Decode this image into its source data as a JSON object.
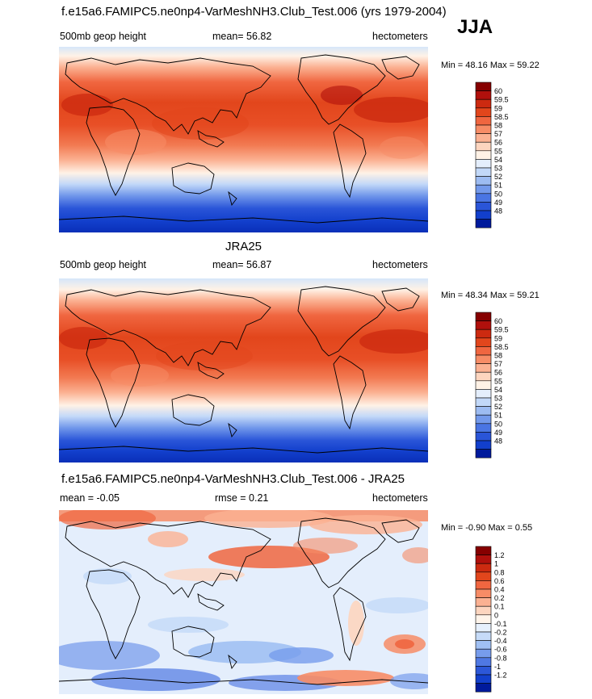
{
  "season": "JJA",
  "panels": [
    {
      "title": "f.e15a6.FAMIPC5.ne0np4-VarMeshNH3.Club_Test.006 (yrs 1979-2004)",
      "left_label": "500mb geop height",
      "center_label": "mean=  56.82",
      "right_label": "hectometers",
      "minmax": "Min =  48.16 Max =  59.22",
      "colorbar": {
        "labels": [
          "60",
          "59.5",
          "59",
          "58.5",
          "58",
          "57",
          "56",
          "55",
          "54",
          "53",
          "52",
          "51",
          "50",
          "49",
          "48"
        ],
        "colors": [
          "#860000",
          "#b0100c",
          "#cc2a10",
          "#e2461c",
          "#f06640",
          "#f78c66",
          "#fbb192",
          "#fdd5bf",
          "#fff2e6",
          "#e4eefc",
          "#c2d8f8",
          "#9dbcf2",
          "#7399eb",
          "#4a75e3",
          "#2a55d8",
          "#123fcc",
          "#001a9c"
        ]
      }
    },
    {
      "title": "JRA25",
      "left_label": "500mb geop height",
      "center_label": "mean=  56.87",
      "right_label": "hectometers",
      "minmax": "Min =  48.34 Max =  59.21",
      "colorbar": {
        "labels": [
          "60",
          "59.5",
          "59",
          "58.5",
          "58",
          "57",
          "56",
          "55",
          "54",
          "53",
          "52",
          "51",
          "50",
          "49",
          "48"
        ],
        "colors": [
          "#860000",
          "#b0100c",
          "#cc2a10",
          "#e2461c",
          "#f06640",
          "#f78c66",
          "#fbb192",
          "#fdd5bf",
          "#fff2e6",
          "#e4eefc",
          "#c2d8f8",
          "#9dbcf2",
          "#7399eb",
          "#4a75e3",
          "#2a55d8",
          "#123fcc",
          "#001a9c"
        ]
      }
    },
    {
      "title": "f.e15a6.FAMIPC5.ne0np4-VarMeshNH3.Club_Test.006 - JRA25",
      "left_label": "mean =  -0.05",
      "center_label": "rmse =   0.21",
      "right_label": "hectometers",
      "minmax": "Min =  -0.90 Max =   0.55",
      "colorbar": {
        "labels": [
          "1.2",
          "1",
          "0.8",
          "0.6",
          "0.4",
          "0.2",
          "0.1",
          "0",
          "-0.1",
          "-0.2",
          "-0.4",
          "-0.6",
          "-0.8",
          "-1",
          "-1.2"
        ],
        "colors": [
          "#860000",
          "#b0100c",
          "#cc2a10",
          "#e2461c",
          "#f06640",
          "#f78c66",
          "#fbb192",
          "#fdd5bf",
          "#fff4ea",
          "#e6f0fd",
          "#c6dbf8",
          "#a0c0f3",
          "#779cec",
          "#4f78e3",
          "#2c57d8",
          "#1340cc",
          "#001a9c"
        ]
      }
    }
  ]
}
